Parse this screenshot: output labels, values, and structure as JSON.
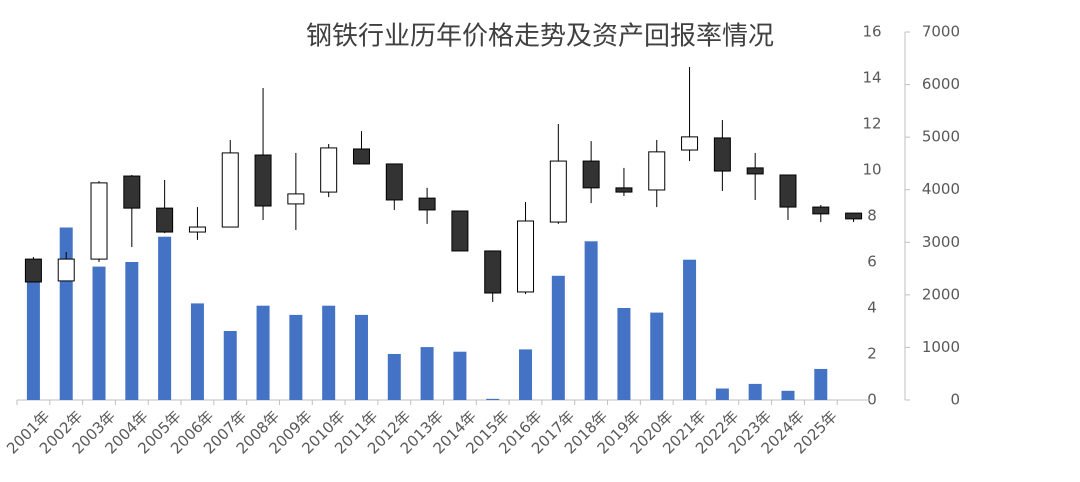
{
  "chart_data": {
    "type": "combo",
    "title": "钢铁行业历年价格走势及资产回报率情况",
    "categories": [
      "2001年",
      "2002年",
      "2003年",
      "2004年",
      "2005年",
      "2006年",
      "2007年",
      "2008年",
      "2009年",
      "2010年",
      "2011年",
      "2012年",
      "2013年",
      "2014年",
      "2015年",
      "2016年",
      "2017年",
      "2018年",
      "2019年",
      "2020年",
      "2021年",
      "2022年",
      "2023年",
      "2024年",
      "2025年",
      null
    ],
    "ylim": [
      0,
      16
    ],
    "yticks": [
      0,
      2,
      4,
      6,
      8,
      10,
      12,
      14,
      16
    ],
    "y2lim": [
      0,
      7000
    ],
    "y2ticks": [
      0,
      1000,
      2000,
      3000,
      4000,
      5000,
      6000,
      7000
    ],
    "series": [
      {
        "type": "bar",
        "color": "#4472c4",
        "values": [
          5.2,
          7.5,
          5.8,
          6.0,
          7.1,
          4.2,
          3.0,
          4.1,
          3.7,
          4.1,
          3.7,
          2.0,
          2.3,
          2.1,
          0.05,
          2.2,
          5.4,
          6.9,
          4.0,
          3.8,
          6.1,
          0.5,
          0.7,
          0.4,
          1.35,
          null
        ]
      },
      {
        "type": "candlestick",
        "axis": "y2",
        "up_color": "#ffffff",
        "down_color": "#333333",
        "edge_color": "#000000",
        "open": [
          2680,
          2265,
          2680,
          4260,
          3650,
          3195,
          3290,
          4660,
          3730,
          3955,
          4775,
          4490,
          3840,
          3595,
          2835,
          2055,
          3385,
          4545,
          4035,
          3995,
          4755,
          4985,
          4415,
          4280,
          3670,
          3555
        ],
        "high": [
          2720,
          2815,
          4165,
          4280,
          4185,
          3670,
          4945,
          5935,
          4700,
          4870,
          5115,
          4490,
          4035,
          3595,
          2835,
          3765,
          5250,
          4925,
          4415,
          4945,
          6335,
          5325,
          4700,
          4280,
          3710,
          3555
        ],
        "low": [
          2245,
          2265,
          2625,
          2910,
          3175,
          3045,
          3290,
          3425,
          3235,
          3860,
          4490,
          3615,
          3350,
          2835,
          1865,
          2015,
          3350,
          3745,
          3880,
          3670,
          4545,
          3975,
          3805,
          3425,
          3385,
          3385
        ],
        "close": [
          2245,
          2680,
          4130,
          3650,
          3195,
          3290,
          4700,
          3690,
          3920,
          4795,
          4490,
          3805,
          3615,
          2835,
          2035,
          3405,
          4545,
          4035,
          3955,
          4720,
          5005,
          4355,
          4300,
          3670,
          3540,
          3445
        ]
      }
    ]
  }
}
